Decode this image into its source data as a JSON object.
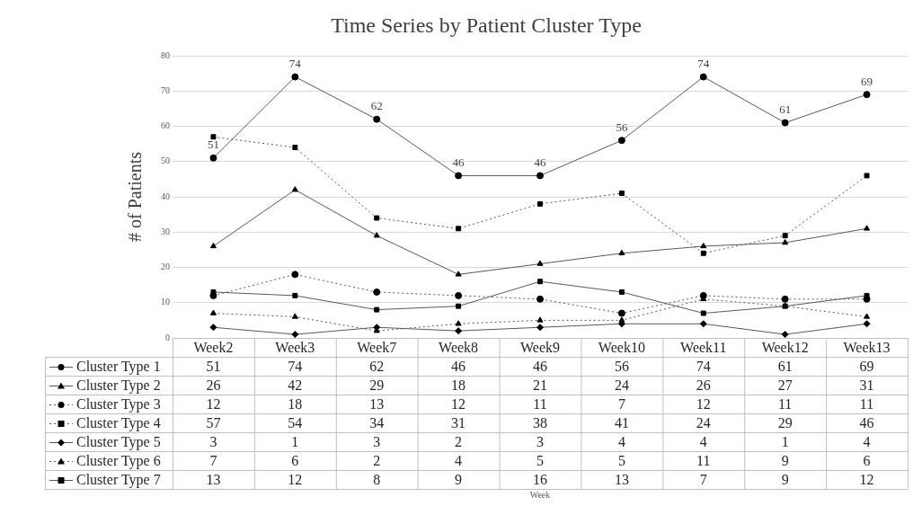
{
  "chart_data": {
    "type": "line",
    "title": "Time Series by Patient Cluster Type",
    "ylabel": "# of Patients",
    "annotations": [
      "Week",
      {
        "text": "51",
        "x": "Week2",
        "y": 51
      },
      {
        "text": "74",
        "x": "Week3",
        "y": 74
      },
      {
        "text": "62",
        "x": "Week7",
        "y": 62
      },
      {
        "text": "46",
        "x": "Week8",
        "y": 46
      },
      {
        "text": "46",
        "x": "Week9",
        "y": 46
      },
      {
        "text": "56",
        "x": "Week10",
        "y": 56
      },
      {
        "text": "74",
        "x": "Week11",
        "y": 74
      },
      {
        "text": "61",
        "x": "Week12",
        "y": 61
      },
      {
        "text": "69",
        "x": "Week13",
        "y": 69
      }
    ],
    "categories": [
      "Week2",
      "Week3",
      "Week7",
      "Week8",
      "Week9",
      "Week10",
      "Week11",
      "Week12",
      "Week13"
    ],
    "series": [
      {
        "name": "Cluster Type 1",
        "color": "#000000",
        "marker": "circle",
        "line_style": "solid",
        "values": [
          51,
          74,
          62,
          46,
          46,
          56,
          74,
          61,
          69
        ]
      },
      {
        "name": "Cluster Type 2",
        "color": "#000000",
        "marker": "triangle",
        "line_style": "solid",
        "values": [
          26,
          42,
          29,
          18,
          21,
          24,
          26,
          27,
          31
        ]
      },
      {
        "name": "Cluster Type 3",
        "color": "#000000",
        "marker": "circle",
        "line_style": "dotted",
        "values": [
          12,
          18,
          13,
          12,
          11,
          7,
          12,
          11,
          11
        ]
      },
      {
        "name": "Cluster Type 4",
        "color": "#000000",
        "marker": "square",
        "line_style": "dotted",
        "values": [
          57,
          54,
          34,
          31,
          38,
          41,
          24,
          29,
          46
        ]
      },
      {
        "name": "Cluster Type 5",
        "color": "#000000",
        "marker": "diamond",
        "line_style": "solid",
        "values": [
          3,
          1,
          3,
          2,
          3,
          4,
          4,
          1,
          4
        ]
      },
      {
        "name": "Cluster Type 6",
        "color": "#000000",
        "marker": "triangle",
        "line_style": "dotted",
        "values": [
          7,
          6,
          2,
          4,
          5,
          5,
          11,
          9,
          6
        ]
      },
      {
        "name": "Cluster Type 7",
        "color": "#000000",
        "marker": "square",
        "line_style": "solid",
        "values": [
          13,
          12,
          8,
          9,
          16,
          13,
          7,
          9,
          12
        ]
      }
    ],
    "ylim": [
      0,
      80
    ],
    "yticks": [
      0,
      10,
      20,
      30,
      40,
      50,
      60,
      70,
      80
    ],
    "grid": "y",
    "legend": "bottom",
    "data_labels": true
  }
}
